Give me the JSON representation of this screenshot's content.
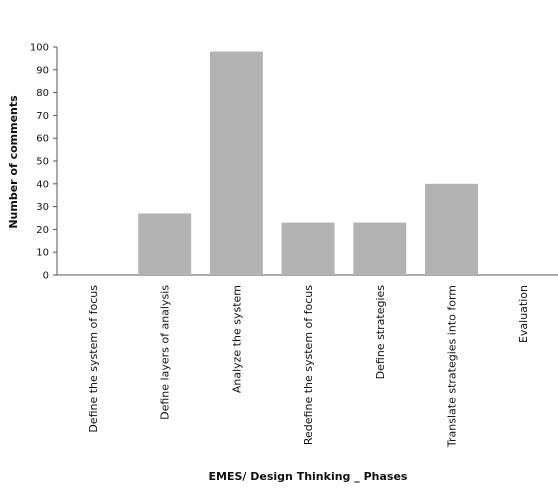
{
  "chart_data": {
    "type": "bar",
    "categories": [
      "Define the system of focus",
      "Define layers of analysis",
      "Analyze the system",
      "Redefine the system of focus",
      "Define strategies",
      "Translate strategies into form",
      "Evaluation"
    ],
    "values": [
      0,
      27,
      98,
      23,
      23,
      40,
      0
    ],
    "xlabel": "EMES/ Design Thinking _ Phases",
    "ylabel": "Number of comments",
    "ylim": [
      0,
      100
    ],
    "yticks": [
      0,
      10,
      20,
      30,
      40,
      50,
      60,
      70,
      80,
      90,
      100
    ],
    "grid": false,
    "legend": "none",
    "bar_color": "#b3b3b3"
  }
}
